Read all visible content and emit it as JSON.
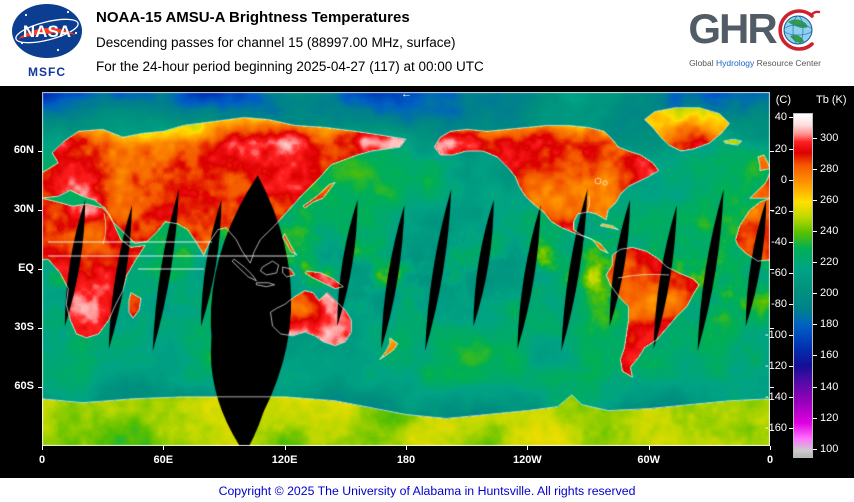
{
  "header": {
    "nasa_logo_text": "NASA",
    "msfc_label": "MSFC",
    "title": "NOAA-15 AMSU-A Brightness Temperatures",
    "subtitle": "Descending passes for channel 15 (88997.00 MHz, surface)",
    "period_line": "For the 24-hour period beginning 2025-04-27 (117) at 00:00 UTC",
    "ghrc_letters": "GHR",
    "ghrc_tagline_global": "Global",
    "ghrc_tagline_hydrology": "Hydrology",
    "ghrc_tagline_resource": "Resource Center"
  },
  "map": {
    "direction_arrow": "←",
    "lat_ticks": [
      {
        "label": "60N",
        "lat": 60
      },
      {
        "label": "30N",
        "lat": 30
      },
      {
        "label": "EQ",
        "lat": 0
      },
      {
        "label": "30S",
        "lat": -30
      },
      {
        "label": "60S",
        "lat": -60
      }
    ],
    "lon_ticks": [
      {
        "label": "0",
        "lon": 0
      },
      {
        "label": "60E",
        "lon": 60
      },
      {
        "label": "120E",
        "lon": 120
      },
      {
        "label": "180",
        "lon": 180
      },
      {
        "label": "120W",
        "lon": 240
      },
      {
        "label": "60W",
        "lon": 300
      },
      {
        "label": "0",
        "lon": 360
      }
    ]
  },
  "colorbar": {
    "celsius_label": "(C)",
    "kelvin_label": "Tb (K)",
    "celsius_ticks": [
      40,
      20,
      0,
      -20,
      -40,
      -60,
      -80,
      -100,
      -120,
      -140,
      -160
    ],
    "kelvin_ticks": [
      300,
      280,
      260,
      240,
      220,
      200,
      180,
      160,
      140,
      120,
      100
    ],
    "palette": [
      {
        "k": 316,
        "c": "#ffffff"
      },
      {
        "k": 309,
        "c": "#ffdede"
      },
      {
        "k": 303,
        "c": "#ff9090"
      },
      {
        "k": 298,
        "c": "#ff2020"
      },
      {
        "k": 291,
        "c": "#dc0000"
      },
      {
        "k": 283,
        "c": "#f45800"
      },
      {
        "k": 271,
        "c": "#ff9800"
      },
      {
        "k": 259,
        "c": "#ffe000"
      },
      {
        "k": 249,
        "c": "#bcd800"
      },
      {
        "k": 239,
        "c": "#58c000"
      },
      {
        "k": 229,
        "c": "#00b054"
      },
      {
        "k": 216,
        "c": "#00a484"
      },
      {
        "k": 202,
        "c": "#00917e"
      },
      {
        "k": 189,
        "c": "#00808e"
      },
      {
        "k": 179,
        "c": "#0060c4"
      },
      {
        "k": 166,
        "c": "#0034b4"
      },
      {
        "k": 153,
        "c": "#140e96"
      },
      {
        "k": 141,
        "c": "#5c0aa8"
      },
      {
        "k": 129,
        "c": "#9a00bc"
      },
      {
        "k": 116,
        "c": "#e000e0"
      },
      {
        "k": 106,
        "c": "#ff70ff"
      },
      {
        "k": 98,
        "c": "#cccccc"
      },
      {
        "k": 92,
        "c": "#aaaaaa"
      }
    ]
  },
  "footer": {
    "copyright": "Copyright © 2025 The University of Alabama in Huntsville.  All rights reserved"
  },
  "chart_data": {
    "type": "heatmap",
    "title": "NOAA-15 AMSU-A Brightness Temperatures",
    "subtitle": "Descending passes for channel 15 (88997.00 MHz, surface)",
    "period": "2025-04-27 (117) 00:00 UTC, 24-hour period",
    "projection": "equirectangular world map, longitude 0E eastward to 0",
    "x_ticks": [
      "0",
      "60E",
      "120E",
      "180",
      "120W",
      "60W",
      "0"
    ],
    "y_ticks": [
      "60N",
      "30N",
      "EQ",
      "30S",
      "60S"
    ],
    "colorbar_units": [
      "C",
      "K"
    ],
    "colorbar_celsius_range": [
      40,
      -160
    ],
    "colorbar_kelvin_range": [
      300,
      100
    ],
    "legend_position": "right",
    "notes": "Brightness temperature field: warm land masses red/orange (~280-300K), oceans teal-green (~200-240K), tropical moisture bands yellow (~255K), Antarctica green-yellow (~235-260K); black lens-shaped gaps between descending orbital swaths, one large data-gap swath near 100E"
  }
}
